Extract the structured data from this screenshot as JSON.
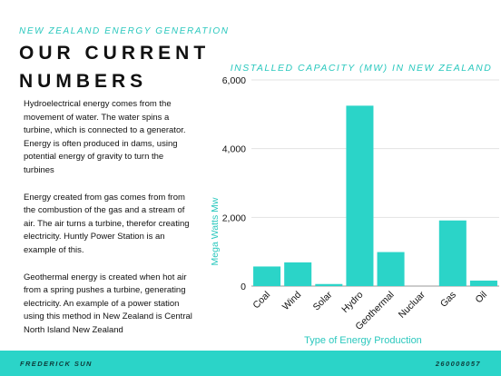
{
  "header": {
    "subtitle": "NEW ZEALAND ENERGY GENERATION",
    "title": "OUR CURRENT NUMBERS"
  },
  "body": {
    "paragraphs": [
      "Hydroelectrical energy comes from the movement of water. The water spins a turbine, which is connected to a generator. Energy is often produced in dams, using potential energy of gravity to turn the turbines",
      "Energy created from gas comes from from the combustion of the gas and a stream of air. The air turns a turbine, therefor creating electricity. Huntly Power Station is an example of this.",
      "Geothermal energy is created when hot air from a spring pushes a turbine, generating electricity. An example of a power station using this method in New Zealand is Central North Island New Zealand"
    ]
  },
  "footer": {
    "author": "FREDERICK SUN",
    "number": "260008057"
  },
  "colors": {
    "accent": "#2bd4c8",
    "text": "#111111"
  },
  "chart_data": {
    "type": "bar",
    "title": "INSTALLED CAPACITY (MW) IN NEW ZEALAND",
    "xlabel": "Type of Energy Production",
    "ylabel": "Mega Watts Mw",
    "categories": [
      "Coal",
      "Wind",
      "Solar",
      "Hydro",
      "Geothermal",
      "Nucluar",
      "Gas",
      "Oil"
    ],
    "values": [
      570,
      690,
      60,
      5250,
      990,
      0,
      1910,
      160
    ],
    "ylim": [
      0,
      6000
    ],
    "yticks": [
      0,
      2000,
      4000,
      6000
    ],
    "ytick_labels": [
      "0",
      "2,000",
      "4,000",
      "6,000"
    ],
    "grid": true,
    "color": "#2bd4c8"
  }
}
